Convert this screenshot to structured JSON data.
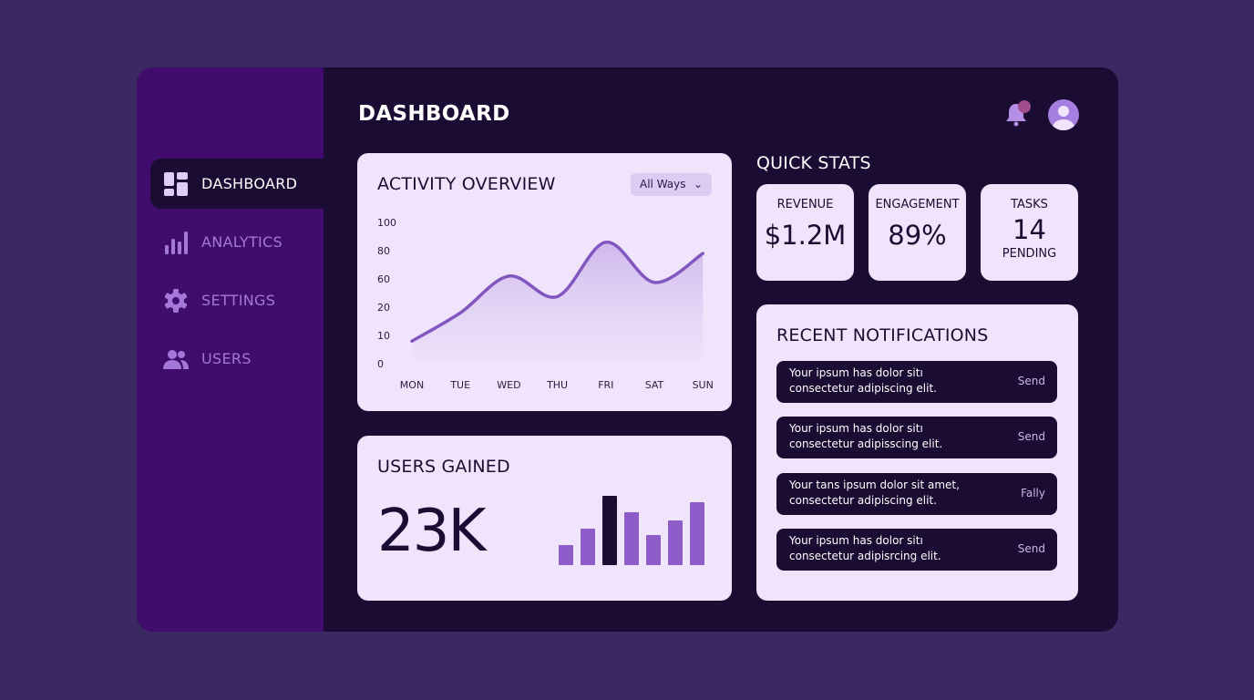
{
  "header": {
    "title": "DASHBOARD",
    "notification_dot_color": "#a04e8e"
  },
  "sidebar": {
    "items": [
      {
        "label": "DASHBOARD",
        "icon": "dashboard-grid-icon",
        "active": true
      },
      {
        "label": "ANALYTICS",
        "icon": "bar-chart-icon"
      },
      {
        "label": "SETTINGS",
        "icon": "gear-icon"
      },
      {
        "label": "USERS",
        "icon": "users-icon"
      }
    ]
  },
  "activity": {
    "title": "ACTIVITY OVERVIEW",
    "filter": "All Ways"
  },
  "users_gained": {
    "title": "USERS GAINED",
    "value": "23K"
  },
  "quick_stats": {
    "title": "QUICK STATS",
    "items": [
      {
        "label": "REVENUE",
        "value": "$1.2M"
      },
      {
        "label": "ENGAGEMENT",
        "value": "89%"
      },
      {
        "label": "TASKS",
        "value": "14",
        "sub": "PENDING"
      }
    ]
  },
  "notifications": {
    "title": "RECENT NOTIFICATIONS",
    "items": [
      {
        "text": "Your ipsum has dolor sitı consectetur adipiscing elit.",
        "action": "Send"
      },
      {
        "text": "Your ipsum has dolor sitı consectetur adipisscing elit.",
        "action": "Send"
      },
      {
        "text": "Your tans ipsum dolor sit amet, consectetur adipiscing elit.",
        "action": "Fally"
      },
      {
        "text": "Your ipsum has dolor sitı consectetur adipisrcing elit.",
        "action": "Send"
      }
    ]
  },
  "colors": {
    "accent": "#8e5cc8",
    "dark": "#1b0c34",
    "card": "#efe4fb",
    "sidebar": "#400d6d"
  },
  "chart_data": [
    {
      "type": "area",
      "categories": [
        "MON",
        "TUE",
        "WED",
        "THU",
        "FRI",
        "SAT",
        "SUN"
      ],
      "y_ticks": [
        "0",
        "10",
        "20",
        "60",
        "80",
        "100"
      ],
      "values": [
        8,
        18,
        62,
        35,
        86,
        55,
        78
      ],
      "grid": false
    },
    {
      "type": "bar",
      "categories": [
        "1",
        "2",
        "3",
        "4",
        "5",
        "6",
        "7"
      ],
      "values": [
        22,
        40,
        76,
        58,
        33,
        49,
        69
      ],
      "highlight_index": 2
    }
  ]
}
